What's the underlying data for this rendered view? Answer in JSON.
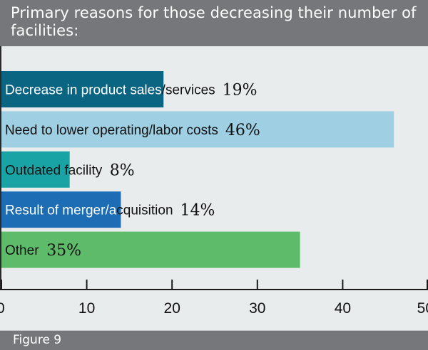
{
  "header": {
    "title": "Primary reasons for those decreasing their number of facilities:"
  },
  "footer": {
    "figure_label": "Figure 9"
  },
  "chart_data": {
    "type": "bar",
    "orientation": "horizontal",
    "title": "Primary reasons for those decreasing their number of facilities:",
    "xlabel": "",
    "ylabel": "",
    "xlim": [
      0,
      50
    ],
    "xticks": [
      0,
      10,
      20,
      30,
      40,
      50
    ],
    "grid": false,
    "legend": "none",
    "unit_suffix": "%",
    "categories": [
      "Decrease in product sales/services",
      "Need to lower operating/labor costs",
      "Outdated facility",
      "Result of merger/acquisition",
      "Other"
    ],
    "values": [
      19,
      46,
      8,
      14,
      35
    ],
    "colors": [
      "#0a6582",
      "#9ecfe3",
      "#1aa3a4",
      "#1c6db3",
      "#5ebb6a"
    ],
    "label_split": [
      {
        "inside": "Decrease in product sales",
        "outside": "/services"
      },
      {
        "inside": "Need to lower operating/labor costs",
        "outside": ""
      },
      {
        "inside": "Outdated ",
        "outside": "facility"
      },
      {
        "inside": "Result of merger/a",
        "outside": "cquisition"
      },
      {
        "inside": "Other",
        "outside": ""
      }
    ],
    "inside_text_colors": [
      "#ffffff",
      "#111111",
      "#111111",
      "#ffffff",
      "#111111"
    ]
  }
}
